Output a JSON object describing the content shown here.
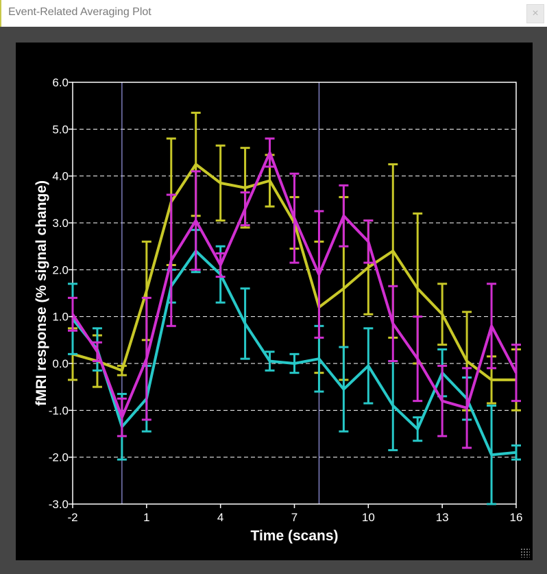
{
  "window": {
    "title": "Event-Related Averaging Plot",
    "close_label": "×"
  },
  "chart_data": {
    "type": "line",
    "title": "",
    "xlabel": "Time (scans)",
    "ylabel": "fMRI response (% signal change)",
    "xlim": [
      -2,
      16
    ],
    "ylim": [
      -3.0,
      6.0
    ],
    "x_ticks": [
      -2,
      1,
      4,
      7,
      10,
      13,
      16
    ],
    "x_tick_labels": [
      "-2",
      "1",
      "4",
      "7",
      "10",
      "13",
      "16"
    ],
    "y_ticks": [
      -3,
      -2,
      -1,
      0,
      1,
      2,
      3,
      4,
      5,
      6
    ],
    "y_tick_labels": [
      "-3.0",
      "-2.0",
      "-1.0",
      "0.0",
      "1.0",
      "2.0",
      "3.0",
      "4.0",
      "5.0",
      "6.0"
    ],
    "grid": "horizontal-dashed",
    "background": "#000000",
    "event_markers_x": [
      0,
      8
    ],
    "x": [
      -2,
      -1,
      0,
      1,
      2,
      3,
      4,
      5,
      6,
      7,
      8,
      9,
      10,
      11,
      12,
      13,
      14,
      15,
      16
    ],
    "series": [
      {
        "color": "#c8c828",
        "values": [
          0.2,
          0.05,
          -0.15,
          1.55,
          3.45,
          4.25,
          3.85,
          3.75,
          3.9,
          3.0,
          1.2,
          1.6,
          2.05,
          2.4,
          1.6,
          1.05,
          0.05,
          -0.35,
          -0.35
        ],
        "errors": [
          0.55,
          0.55,
          0.1,
          1.05,
          1.35,
          1.1,
          0.8,
          0.85,
          0.55,
          0.55,
          1.4,
          1.95,
          1.0,
          1.85,
          1.6,
          0.65,
          1.05,
          0.5,
          0.65
        ]
      },
      {
        "color": "#27c8c8",
        "values": [
          0.95,
          0.3,
          -1.35,
          -0.75,
          1.65,
          2.4,
          1.9,
          0.85,
          0.05,
          0.0,
          0.1,
          -0.55,
          -0.05,
          -0.9,
          -1.4,
          -0.2,
          -0.75,
          -1.95,
          -1.9
        ],
        "errors": [
          0.75,
          0.45,
          0.7,
          0.7,
          0.35,
          0.45,
          0.6,
          0.75,
          0.2,
          0.2,
          0.7,
          0.9,
          0.8,
          0.95,
          0.25,
          0.5,
          0.45,
          1.05,
          0.15
        ]
      },
      {
        "color": "#d02fd0",
        "values": [
          1.05,
          0.25,
          -1.15,
          0.1,
          2.2,
          3.05,
          2.1,
          3.3,
          4.5,
          3.1,
          1.9,
          3.15,
          2.6,
          0.85,
          0.1,
          -0.8,
          -0.95,
          0.8,
          -0.2
        ],
        "errors": [
          0.35,
          0.2,
          0.4,
          1.3,
          1.4,
          1.05,
          0.25,
          0.35,
          0.3,
          0.95,
          1.35,
          0.65,
          0.45,
          0.8,
          0.9,
          0.75,
          0.85,
          0.9,
          0.6
        ]
      }
    ]
  }
}
